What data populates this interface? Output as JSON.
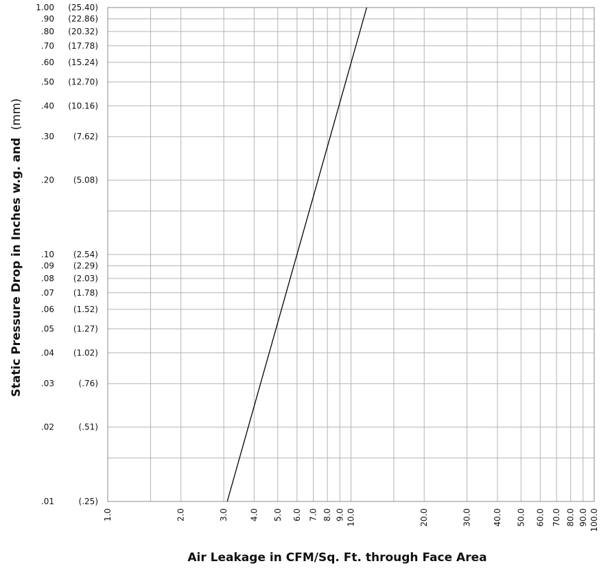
{
  "chart_data": {
    "type": "line",
    "xscale": "log",
    "yscale": "log",
    "xlim": [
      1,
      100
    ],
    "ylim": [
      0.01,
      1.0
    ],
    "grid": true,
    "xlabel": "Air Leakage in CFM/Sq. Ft. through Face Area",
    "ylabel_main": "Static Pressure Drop in Inches w.g. and",
    "ylabel_unit": "(mm)",
    "x_ticks": [
      {
        "value": 1,
        "label": "1.0"
      },
      {
        "value": 2,
        "label": "2.0"
      },
      {
        "value": 3,
        "label": "3.0"
      },
      {
        "value": 4,
        "label": "4.0"
      },
      {
        "value": 5,
        "label": "5.0"
      },
      {
        "value": 6,
        "label": "6.0"
      },
      {
        "value": 7,
        "label": "7.0"
      },
      {
        "value": 8,
        "label": "8.0"
      },
      {
        "value": 9,
        "label": "9.0"
      },
      {
        "value": 10,
        "label": "10.0"
      },
      {
        "value": 20,
        "label": "20.0"
      },
      {
        "value": 30,
        "label": "30.0"
      },
      {
        "value": 40,
        "label": "40.0"
      },
      {
        "value": 50,
        "label": "50.0"
      },
      {
        "value": 60,
        "label": "60.0"
      },
      {
        "value": 70,
        "label": "70.0"
      },
      {
        "value": 80,
        "label": "80.0"
      },
      {
        "value": 90,
        "label": "90.0"
      },
      {
        "value": 100,
        "label": "100.0"
      }
    ],
    "x_extra_gridlines": [
      1.5,
      15
    ],
    "y_ticks": [
      {
        "value": 1.0,
        "label": "1.00",
        "mm": "(25.40)"
      },
      {
        "value": 0.9,
        "label": ".90",
        "mm": "(22.86)"
      },
      {
        "value": 0.8,
        "label": ".80",
        "mm": "(20.32)"
      },
      {
        "value": 0.7,
        "label": ".70",
        "mm": "(17.78)"
      },
      {
        "value": 0.6,
        "label": ".60",
        "mm": "(15.24)"
      },
      {
        "value": 0.5,
        "label": ".50",
        "mm": "(12.70)"
      },
      {
        "value": 0.4,
        "label": ".40",
        "mm": "(10.16)"
      },
      {
        "value": 0.3,
        "label": ".30",
        "mm": "(7.62)"
      },
      {
        "value": 0.2,
        "label": ".20",
        "mm": "(5.08)"
      },
      {
        "value": 0.1,
        "label": ".10",
        "mm": "(2.54)"
      },
      {
        "value": 0.09,
        "label": ".09",
        "mm": "(2.29)"
      },
      {
        "value": 0.08,
        "label": ".08",
        "mm": "(2.03)"
      },
      {
        "value": 0.07,
        "label": ".07",
        "mm": "(1.78)"
      },
      {
        "value": 0.06,
        "label": ".06",
        "mm": "(1.52)"
      },
      {
        "value": 0.05,
        "label": ".05",
        "mm": "(1.27)"
      },
      {
        "value": 0.04,
        "label": ".04",
        "mm": "(1.02)"
      },
      {
        "value": 0.03,
        "label": ".03",
        "mm": "(.76)"
      },
      {
        "value": 0.02,
        "label": ".02",
        "mm": "(.51)"
      },
      {
        "value": 0.01,
        "label": ".01",
        "mm": "(.25)"
      }
    ],
    "y_extra_gridlines": [
      0.15,
      0.015
    ],
    "series": [
      {
        "x": [
          3.1,
          11.6
        ],
        "y": [
          0.01,
          1.0
        ],
        "color": "#000000"
      }
    ]
  }
}
